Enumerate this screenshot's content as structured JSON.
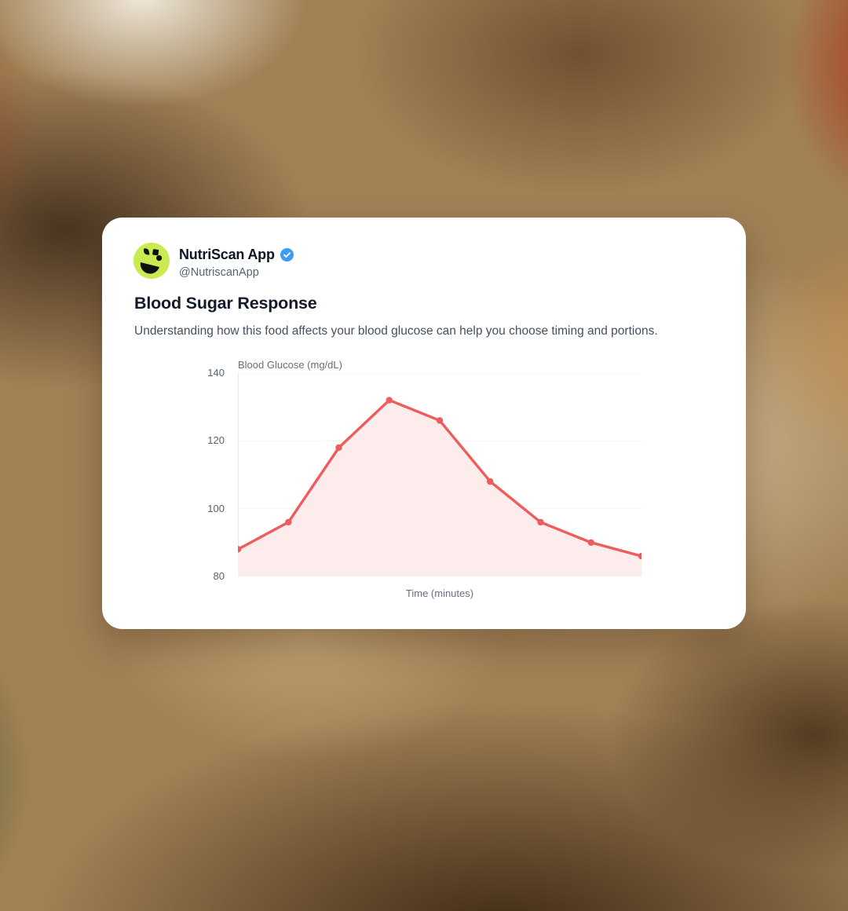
{
  "card": {
    "app_name": "NutriScan App",
    "handle": "@NutriscanApp",
    "title": "Blood Sugar Response",
    "description": "Understanding how this food affects your blood glucose can help you choose timing and portions."
  },
  "icons": {
    "logo": "nutriscan-logo",
    "verified": "verified-check"
  },
  "colors": {
    "logo_green": "#c9ea51",
    "verified_blue": "#3b9df2",
    "line_red": "#ee5c5c",
    "area_pink": "#fdecec",
    "grid_faint": "#f2f3f6",
    "axis_line": "#e4e7eb",
    "bottom_axis_line": "#d9dde2"
  },
  "chart_data": {
    "type": "area",
    "title": "Blood Glucose (mg/dL)",
    "xlabel": "Time (minutes)",
    "ylabel": "Blood Glucose (mg/dL)",
    "values": [
      88,
      96,
      118,
      132,
      126,
      108,
      96,
      90,
      86
    ],
    "ylim": [
      80,
      140
    ],
    "yticks": [
      80,
      100,
      120,
      140
    ],
    "x_tick_labels": [],
    "grid": "horizontal-faint",
    "legend": false,
    "marker": "dot"
  }
}
